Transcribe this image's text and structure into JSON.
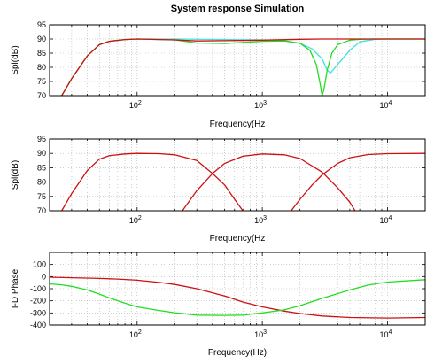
{
  "chart_data": [
    {
      "type": "line",
      "title": "System response Simulation",
      "xlabel": "Frequency(Hz",
      "ylabel": "Spl(dB)",
      "xscale": "log",
      "xlim": [
        20,
        20000
      ],
      "ylim": [
        70,
        95
      ],
      "yticks": [
        70,
        75,
        80,
        85,
        90,
        95
      ],
      "xticks": [
        {
          "base": "10",
          "exp": "2"
        },
        {
          "base": "10",
          "exp": "3"
        },
        {
          "base": "10",
          "exp": "4"
        }
      ],
      "grid": true,
      "series": [
        {
          "color": "#40e0e0",
          "x": [
            25,
            30,
            40,
            50,
            60,
            80,
            100,
            200,
            500,
            1000,
            1500,
            2000,
            2500,
            3000,
            3300,
            3500,
            4000,
            5000,
            6000,
            8000,
            10000,
            20000
          ],
          "y": [
            70,
            76,
            84,
            88,
            89.2,
            89.8,
            90,
            90,
            89.8,
            89.7,
            89.4,
            88.5,
            86.5,
            83,
            79,
            78,
            81,
            86,
            89,
            89.9,
            90,
            90
          ]
        },
        {
          "color": "#22dd22",
          "x": [
            25,
            30,
            40,
            50,
            60,
            80,
            100,
            200,
            300,
            500,
            1000,
            1500,
            2000,
            2400,
            2700,
            2900,
            3000,
            3100,
            3300,
            3600,
            4000,
            5000,
            6000,
            8000,
            10000,
            20000
          ],
          "y": [
            70,
            76,
            84,
            88,
            89.2,
            89.8,
            90,
            89.7,
            88.6,
            88.4,
            89.2,
            89.3,
            88.5,
            86,
            81,
            74,
            70,
            72,
            79,
            85,
            88,
            89.6,
            89.9,
            90,
            90,
            90
          ]
        },
        {
          "color": "#cc1111",
          "x": [
            25,
            30,
            40,
            50,
            60,
            80,
            100,
            200,
            300,
            500,
            1000,
            2000,
            3000,
            5000,
            6000,
            10000,
            20000
          ],
          "y": [
            70,
            76,
            84,
            88,
            89.2,
            89.8,
            90,
            89.7,
            89.3,
            89.4,
            89.6,
            89.9,
            90,
            90,
            90,
            90,
            90
          ]
        }
      ]
    },
    {
      "type": "line",
      "xlabel": "Frequency(Hz",
      "ylabel": "Spl(dB)",
      "xscale": "log",
      "xlim": [
        20,
        20000
      ],
      "ylim": [
        70,
        95
      ],
      "yticks": [
        70,
        75,
        80,
        85,
        90,
        95
      ],
      "xticks": [
        {
          "base": "10",
          "exp": "2"
        },
        {
          "base": "10",
          "exp": "3"
        },
        {
          "base": "10",
          "exp": "4"
        }
      ],
      "grid": true,
      "series": [
        {
          "color": "#cc1111",
          "x": [
            25,
            30,
            40,
            50,
            60,
            80,
            100,
            150,
            200,
            300,
            400,
            500,
            600,
            700
          ],
          "y": [
            70,
            76,
            84,
            88,
            89.2,
            89.8,
            90,
            89.9,
            89.5,
            87.5,
            83,
            79,
            74,
            70
          ]
        },
        {
          "color": "#cc1111",
          "x": [
            230,
            300,
            400,
            500,
            700,
            1000,
            1500,
            2000,
            3000,
            4000,
            5000,
            5500
          ],
          "y": [
            70,
            77,
            83,
            86.5,
            89,
            89.8,
            89.5,
            88.2,
            83.5,
            78,
            73,
            70
          ]
        },
        {
          "color": "#cc1111",
          "x": [
            1700,
            2000,
            2500,
            3000,
            4000,
            5000,
            7000,
            10000,
            20000
          ],
          "y": [
            70,
            74,
            79,
            82.5,
            86.5,
            88.5,
            89.6,
            89.9,
            90
          ]
        }
      ]
    },
    {
      "type": "line",
      "xlabel": "Frequency(Hz)",
      "ylabel": "I-D Phase",
      "xscale": "log",
      "xlim": [
        20,
        20000
      ],
      "ylim": [
        -400,
        200
      ],
      "yticks": [
        -400,
        -300,
        -200,
        -100,
        0,
        100
      ],
      "xticks": [
        {
          "base": "10",
          "exp": "2"
        },
        {
          "base": "10",
          "exp": "3"
        },
        {
          "base": "10",
          "exp": "4"
        }
      ],
      "grid": true,
      "series": [
        {
          "color": "#cc1111",
          "x": [
            20,
            30,
            50,
            70,
            100,
            150,
            200,
            300,
            500,
            700,
            1000,
            1500,
            2000,
            3000,
            5000,
            10000,
            20000
          ],
          "y": [
            -5,
            -9,
            -15,
            -20,
            -30,
            -48,
            -65,
            -100,
            -160,
            -210,
            -250,
            -285,
            -305,
            -325,
            -338,
            -342,
            -338
          ]
        },
        {
          "color": "#22dd22",
          "x": [
            20,
            25,
            30,
            40,
            50,
            60,
            80,
            100,
            150,
            200,
            300,
            500,
            700,
            1000,
            1500,
            2000,
            3000,
            5000,
            7000,
            10000,
            20000
          ],
          "y": [
            -60,
            -68,
            -80,
            -110,
            -145,
            -175,
            -220,
            -250,
            -280,
            -298,
            -318,
            -320,
            -318,
            -300,
            -275,
            -240,
            -180,
            -110,
            -70,
            -45,
            -25
          ]
        }
      ]
    }
  ]
}
